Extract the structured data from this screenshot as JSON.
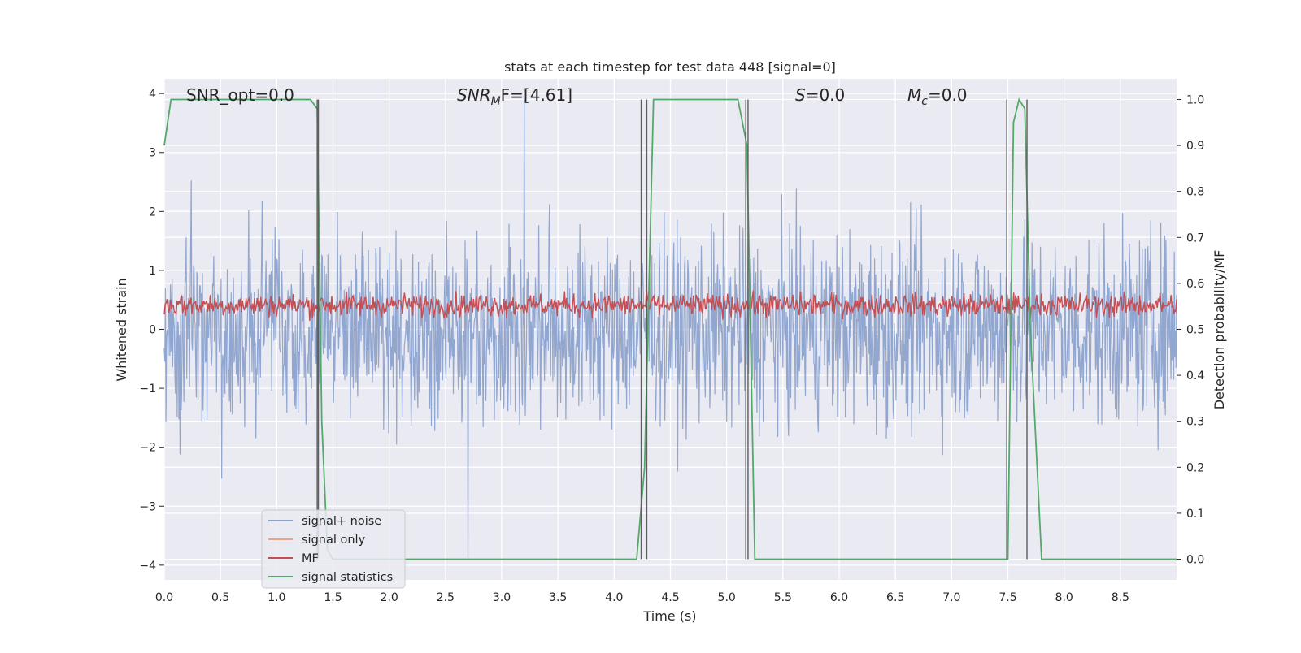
{
  "chart_data": {
    "type": "line",
    "title": "stats at each timestep for test data 448 [signal=0]",
    "xlabel": "Time (s)",
    "ylabel": "Whitened strain",
    "y2label": "Detection probability/MF",
    "xlim": [
      0,
      9.0
    ],
    "ylim": [
      -4.25,
      4.25
    ],
    "y2lim": [
      -0.045,
      1.045
    ],
    "xticks": [
      "0.0",
      "0.5",
      "1.0",
      "1.5",
      "2.0",
      "2.5",
      "3.0",
      "3.5",
      "4.0",
      "4.5",
      "5.0",
      "5.5",
      "6.0",
      "6.5",
      "7.0",
      "7.5",
      "8.0",
      "8.5"
    ],
    "yticks": [
      "−4",
      "−3",
      "−2",
      "−1",
      "0",
      "1",
      "2",
      "3",
      "4"
    ],
    "y2ticks": [
      "0.0",
      "0.1",
      "0.2",
      "0.3",
      "0.4",
      "0.5",
      "0.6",
      "0.7",
      "0.8",
      "0.9",
      "1.0"
    ],
    "grid": true,
    "legend_position": "lower-left",
    "annotations": {
      "snr_opt": "SNR_opt=0.0",
      "snr_mf_prefix": "SNR",
      "snr_mf_sub": "M",
      "snr_mf_suffix": "F=[4.61]",
      "s_prefix": "S",
      "s_suffix": "=0.0",
      "mc_prefix": "M",
      "mc_sub": "c",
      "mc_suffix": "=0.0"
    },
    "series": [
      {
        "name": "signal+ noise",
        "color": "#8da3cd",
        "style": "dense noisy trace, amplitude roughly ±2.3, excursions to about 3.9 near t=3.2 and −3.9 near t=2.7"
      },
      {
        "name": "signal only",
        "color": "#e8a488",
        "values": []
      },
      {
        "name": "MF",
        "color": "#c44e52",
        "style": "noisy trace on right axis, centered near 0.55, range about 0.5 to 0.62"
      },
      {
        "name": "signal statistics",
        "color": "#55a868",
        "x": [
          0.0,
          0.06,
          0.3,
          1.3,
          1.36,
          1.4,
          1.45,
          1.5,
          4.2,
          4.27,
          4.35,
          5.1,
          5.18,
          5.25,
          5.3,
          7.45,
          7.5,
          7.55,
          7.6,
          7.65,
          7.7,
          7.8,
          7.85,
          9.0
        ],
        "values": [
          0.9,
          1.0,
          1.0,
          1.0,
          0.98,
          0.3,
          0.02,
          0.0,
          0.0,
          0.2,
          1.0,
          1.0,
          0.9,
          0.0,
          0.0,
          0.0,
          0.0,
          0.95,
          1.0,
          0.98,
          0.5,
          0.0,
          0.0,
          0.0
        ]
      }
    ],
    "vertical_lines_x": [
      1.36,
      1.37,
      4.24,
      4.29,
      5.17,
      5.19,
      7.49,
      7.67
    ]
  },
  "colors": {
    "plot_background": "#eaeaf2",
    "grid": "#ffffff",
    "vline": "#5e5e5e"
  }
}
